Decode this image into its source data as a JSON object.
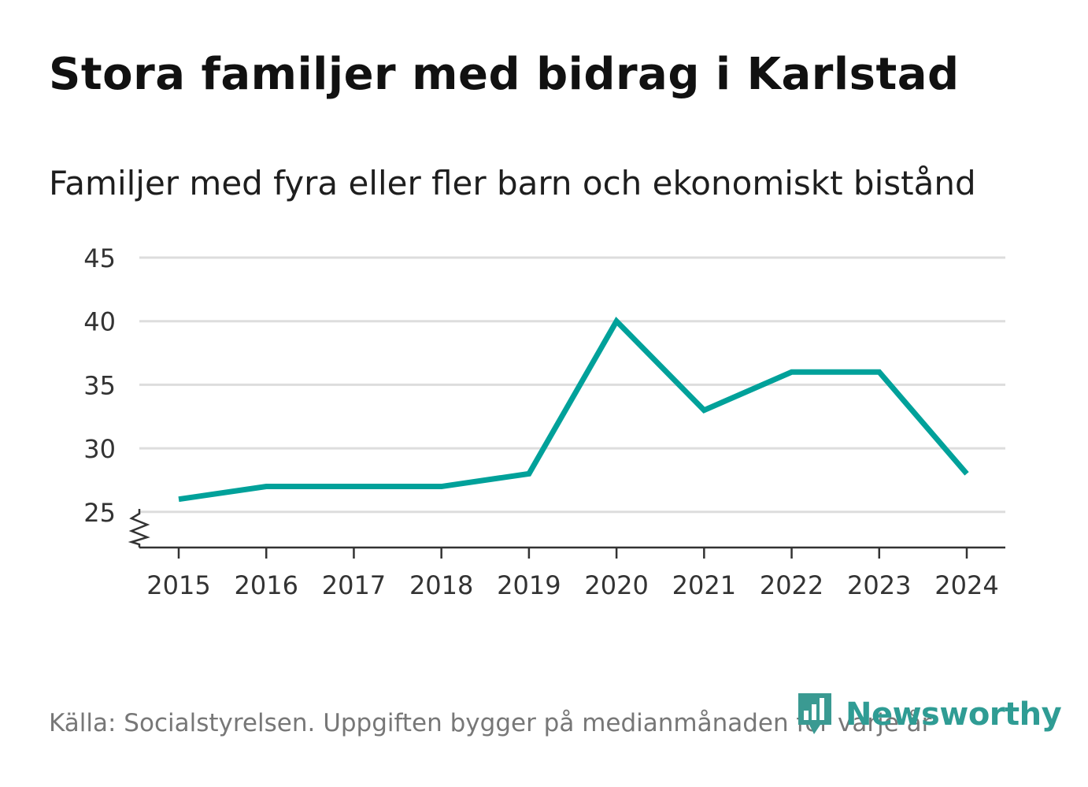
{
  "title": "Stora familjer med bidrag i Karlstad",
  "subtitle": "Familjer med fyra eller fler barn och ekonomiskt bistånd",
  "footer": "Källa: Socialstyrelsen. Uppgiften bygger på medianmånaden för varje år",
  "brand": {
    "name": "Newsworthy",
    "icon": "newsworthy-logo-icon",
    "color": "#3a9a92"
  },
  "chart_data": {
    "type": "line",
    "title": "Stora familjer med bidrag i Karlstad",
    "subtitle": "Familjer med fyra eller fler barn och ekonomiskt bistånd",
    "xlabel": "",
    "ylabel": "",
    "categories": [
      "2015",
      "2016",
      "2017",
      "2018",
      "2019",
      "2020",
      "2021",
      "2022",
      "2023",
      "2024"
    ],
    "series": [
      {
        "name": "Familjer med fyra eller fler barn",
        "values": [
          26,
          27,
          27,
          27,
          28,
          40,
          33,
          36,
          36,
          28
        ],
        "color": "#00a19a"
      }
    ],
    "ylim": [
      22.2,
      45
    ],
    "yticks": [
      "25",
      "30",
      "35",
      "40",
      "45"
    ],
    "ytick_values": [
      25,
      30,
      35,
      40,
      45
    ],
    "grid": true,
    "axis_break": true,
    "legend": "none"
  }
}
